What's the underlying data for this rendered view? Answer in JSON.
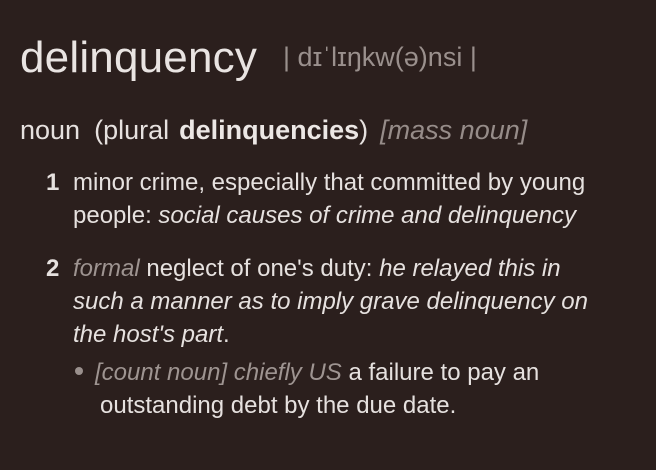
{
  "entry": {
    "headword": "delinquency",
    "pronunciation": "| dɪˈlɪŋkw(ə)nsi |"
  },
  "grammar": {
    "part_of_speech": "noun",
    "paren_open": "(plural",
    "plural_form": "delinquencies",
    "paren_close": ")",
    "mass_label": "[mass noun]"
  },
  "senses": [
    {
      "number": "1",
      "definition_line1": "minor crime, especially that committed by young",
      "definition_line2_prefix": "people: ",
      "example_line2": "social causes of crime and delinquency"
    },
    {
      "number": "2",
      "register": "formal",
      "definition": " neglect of one's duty: ",
      "example_line1": "he relayed this in",
      "example_line2": "such a manner as to imply grave delinquency on",
      "example_line3": "the host's part",
      "end_punct": ".",
      "subsense": {
        "labels": "[count noun] chiefly US",
        "definition_line1": " a failure to pay an",
        "definition_line2": "outstanding debt by the due date."
      }
    }
  ]
}
